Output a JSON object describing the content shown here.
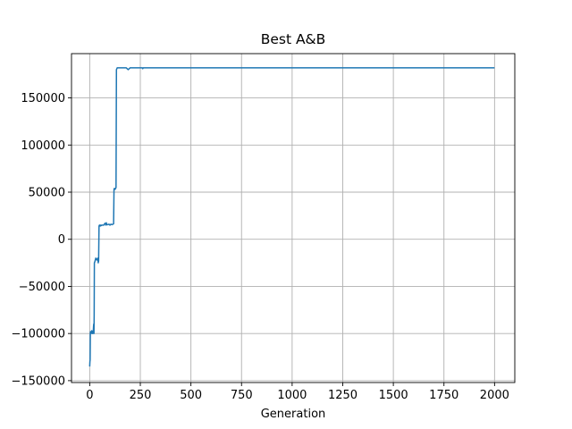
{
  "chart_data": {
    "type": "line",
    "title": "Best A&B",
    "xlabel": "Generation",
    "ylabel": "",
    "xlim": [
      -90,
      2100
    ],
    "ylim": [
      -152000,
      197000
    ],
    "grid": true,
    "x_ticks": [
      0,
      250,
      500,
      750,
      1000,
      1250,
      1500,
      1750,
      2000
    ],
    "x_tick_labels": [
      "0",
      "250",
      "500",
      "750",
      "1000",
      "1250",
      "1500",
      "1750",
      "2000"
    ],
    "y_ticks": [
      -150000,
      -100000,
      -50000,
      0,
      50000,
      100000,
      150000
    ],
    "y_tick_labels": [
      "−150000",
      "−100000",
      "−50000",
      "0",
      "50000",
      "100000",
      "150000"
    ],
    "series": [
      {
        "color": "#1f77b4",
        "x": [
          0,
          1,
          2,
          3,
          4,
          6,
          8,
          10,
          12,
          14,
          16,
          18,
          19,
          20,
          21,
          22,
          23,
          25,
          30,
          35,
          40,
          42,
          44,
          46,
          48,
          50,
          52,
          55,
          58,
          60,
          65,
          70,
          75,
          78,
          80,
          82,
          85,
          90,
          95,
          100,
          105,
          110,
          115,
          118,
          120,
          122,
          125,
          128,
          130,
          132,
          134,
          136,
          140,
          150,
          160,
          170,
          180,
          190,
          200,
          210,
          220,
          250,
          260,
          262,
          265,
          270,
          300,
          400,
          500,
          600,
          700,
          800,
          900,
          1000,
          1100,
          1200,
          1300,
          1400,
          1500,
          1600,
          1700,
          1800,
          1900,
          2000
        ],
        "y": [
          -135000,
          -130000,
          -128000,
          -100000,
          -98000,
          -100000,
          -99000,
          -97000,
          -100000,
          -98000,
          -100000,
          -96000,
          -92000,
          -90000,
          -100000,
          -80000,
          -25000,
          -24000,
          -20000,
          -22000,
          -20000,
          -25000,
          -23000,
          14000,
          15000,
          15000,
          14000,
          15000,
          14500,
          15000,
          15000,
          15000,
          17000,
          16500,
          15000,
          17500,
          15500,
          15500,
          16000,
          15000,
          16000,
          15500,
          16000,
          16500,
          53000,
          54000,
          53000,
          54000,
          55000,
          180000,
          181000,
          182000,
          182000,
          182000,
          182000,
          182000,
          182000,
          180000,
          182000,
          182000,
          182000,
          182000,
          182000,
          181000,
          182000,
          182000,
          182000,
          182000,
          182000,
          182000,
          182000,
          182000,
          182000,
          182000,
          182000,
          182000,
          182000,
          182000,
          182000,
          182000,
          182000,
          182000,
          182000,
          182000
        ]
      }
    ]
  }
}
